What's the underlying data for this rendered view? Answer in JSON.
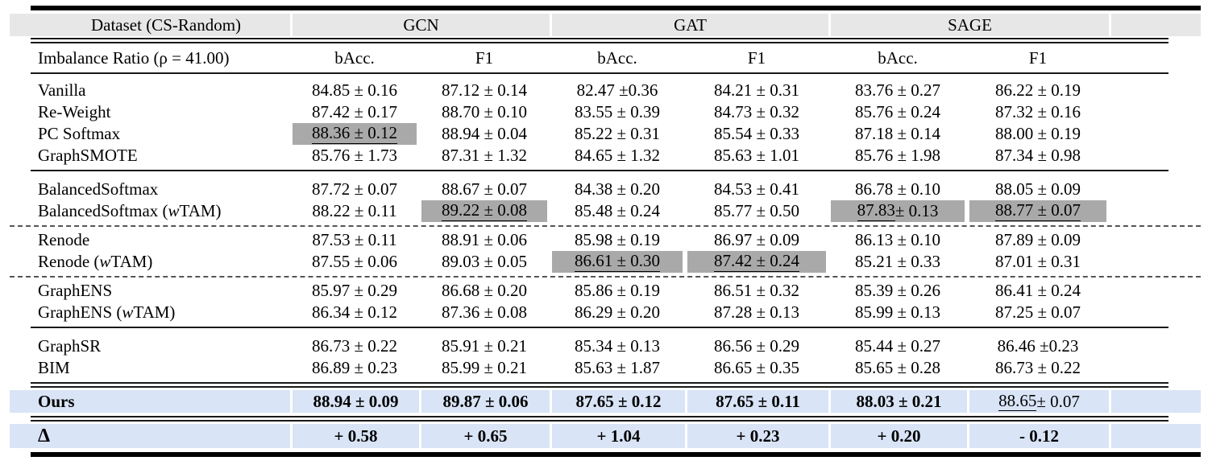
{
  "header": {
    "dataset_label": "Dataset (CS-Random)",
    "groups": [
      "GCN",
      "GAT",
      "SAGE"
    ]
  },
  "subheader": {
    "label": "Imbalance Ratio (ρ = 41.00)",
    "metrics": [
      "bAcc.",
      "F1",
      "bAcc.",
      "F1",
      "bAcc.",
      "F1"
    ]
  },
  "colors": {
    "header_band": "#e7e7e7",
    "highlight_gray": "#a9a9a9",
    "accent_row_blue": "#d9e4f6",
    "rule_black": "#000000"
  },
  "rows": [
    {
      "type": "data",
      "label": "Vanilla",
      "cells": [
        {
          "t": "84.85 ± 0.16"
        },
        {
          "t": "87.12 ± 0.14"
        },
        {
          "t": "82.47 ±0.36"
        },
        {
          "t": "84.21 ± 0.31"
        },
        {
          "t": "83.76 ± 0.27"
        },
        {
          "t": "86.22 ± 0.19"
        }
      ]
    },
    {
      "type": "data",
      "label": "Re-Weight",
      "cells": [
        {
          "t": "87.42 ± 0.17"
        },
        {
          "t": "88.70 ± 0.10"
        },
        {
          "t": "83.55 ± 0.39"
        },
        {
          "t": "84.73 ± 0.32"
        },
        {
          "t": "85.76 ± 0.24"
        },
        {
          "t": "87.32 ± 0.16"
        }
      ]
    },
    {
      "type": "data",
      "label": "PC Softmax",
      "cells": [
        {
          "t": "88.36 ± 0.12",
          "hl": true,
          "ul": "full"
        },
        {
          "t": "88.94 ± 0.04"
        },
        {
          "t": "85.22 ± 0.31"
        },
        {
          "t": "85.54 ± 0.33"
        },
        {
          "t": "87.18 ± 0.14"
        },
        {
          "t": "88.00 ± 0.19"
        }
      ]
    },
    {
      "type": "data",
      "label": "GraphSMOTE",
      "cells": [
        {
          "t": "85.76 ± 1.73"
        },
        {
          "t": "87.31 ± 1.32"
        },
        {
          "t": "84.65 ± 1.32"
        },
        {
          "t": "85.63 ± 1.01"
        },
        {
          "t": "85.76 ± 1.98"
        },
        {
          "t": "87.34 ± 0.98"
        }
      ]
    },
    {
      "type": "midrule"
    },
    {
      "type": "data",
      "label": "BalancedSoftmax",
      "cells": [
        {
          "t": "87.72 ± 0.07"
        },
        {
          "t": "88.67 ± 0.07"
        },
        {
          "t": "84.38 ± 0.20"
        },
        {
          "t": "84.53 ± 0.41"
        },
        {
          "t": "86.78 ± 0.10"
        },
        {
          "t": "88.05 ± 0.09"
        }
      ]
    },
    {
      "type": "data",
      "label": "BalancedSoftmax (w TAM)",
      "parts": [
        "BalancedSoftmax (",
        "w",
        " TAM)"
      ],
      "cells": [
        {
          "t": "88.22 ± 0.11"
        },
        {
          "t": "89.22 ± 0.08",
          "hl": true,
          "ul": "full"
        },
        {
          "t": "85.48 ± 0.24"
        },
        {
          "t": "85.77 ± 0.50"
        },
        {
          "m": "87.83",
          "r": " ± 0.13",
          "hl": true,
          "ul": "mean"
        },
        {
          "t": "88.77 ± 0.07",
          "hl": true,
          "ul": "full"
        }
      ]
    },
    {
      "type": "dashed"
    },
    {
      "type": "data",
      "label": "Renode",
      "cells": [
        {
          "t": "87.53 ± 0.11"
        },
        {
          "t": "88.91 ± 0.06"
        },
        {
          "t": "85.98 ± 0.19"
        },
        {
          "t": "86.97 ± 0.09"
        },
        {
          "t": "86.13 ± 0.10"
        },
        {
          "t": "87.89 ± 0.09"
        }
      ]
    },
    {
      "type": "data",
      "label": "Renode (w TAM)",
      "parts": [
        "Renode (",
        "w",
        " TAM)"
      ],
      "cells": [
        {
          "t": "87.55 ± 0.06"
        },
        {
          "t": "89.03 ± 0.05"
        },
        {
          "t": "86.61 ± 0.30",
          "hl": true,
          "ul": "full"
        },
        {
          "t": "87.42 ± 0.24",
          "hl": true,
          "ul": "full"
        },
        {
          "t": "85.21 ± 0.33"
        },
        {
          "t": "87.01 ± 0.31"
        }
      ]
    },
    {
      "type": "dashed"
    },
    {
      "type": "data",
      "label": "GraphENS",
      "cells": [
        {
          "t": "85.97 ± 0.29"
        },
        {
          "t": "86.68 ± 0.20"
        },
        {
          "t": "85.86 ± 0.19"
        },
        {
          "t": "86.51 ± 0.32"
        },
        {
          "t": "85.39 ± 0.26"
        },
        {
          "t": "86.41 ± 0.24"
        }
      ]
    },
    {
      "type": "data",
      "label": "GraphENS (w TAM)",
      "parts": [
        "GraphENS (",
        "w",
        " TAM)"
      ],
      "cells": [
        {
          "t": "86.34 ± 0.12"
        },
        {
          "t": "87.36 ± 0.08"
        },
        {
          "t": "86.29 ± 0.20"
        },
        {
          "t": "87.28 ± 0.13"
        },
        {
          "t": "85.99 ± 0.13"
        },
        {
          "t": "87.25 ± 0.07"
        }
      ]
    },
    {
      "type": "midrule"
    },
    {
      "type": "data",
      "label": "GraphSR",
      "cells": [
        {
          "t": "86.73 ± 0.22"
        },
        {
          "t": "85.91 ± 0.21"
        },
        {
          "t": "85.34 ± 0.13"
        },
        {
          "t": "86.56 ± 0.29"
        },
        {
          "t": "85.44 ± 0.27"
        },
        {
          "t": "86.46 ±0.23"
        }
      ]
    },
    {
      "type": "data",
      "label": "BIM",
      "cells": [
        {
          "t": "86.89 ± 0.23"
        },
        {
          "t": "85.99 ± 0.21"
        },
        {
          "t": "85.63 ± 1.87"
        },
        {
          "t": "86.65 ± 0.35"
        },
        {
          "t": "85.65 ± 0.28"
        },
        {
          "t": "86.73 ± 0.22"
        }
      ]
    },
    {
      "type": "double"
    },
    {
      "type": "data",
      "style": "ours",
      "label": "Ours",
      "cells": [
        {
          "t": "88.94 ± 0.09",
          "b": true
        },
        {
          "t": "89.87 ± 0.06",
          "b": true
        },
        {
          "t": "87.65 ± 0.12",
          "b": true
        },
        {
          "t": "87.65 ± 0.11",
          "b": true
        },
        {
          "t": "88.03 ± 0.21",
          "b": true
        },
        {
          "m": "88.65",
          "r": " ± 0.07",
          "ul": "mean"
        }
      ]
    },
    {
      "type": "double"
    },
    {
      "type": "data",
      "style": "delta",
      "label": "Δ",
      "cells": [
        {
          "t": "+ 0.58",
          "b": true
        },
        {
          "t": "+ 0.65",
          "b": true
        },
        {
          "t": "+ 1.04",
          "b": true
        },
        {
          "t": "+ 0.23",
          "b": true
        },
        {
          "t": "+ 0.20",
          "b": true
        },
        {
          "t": "- 0.12",
          "b": true
        }
      ]
    }
  ]
}
